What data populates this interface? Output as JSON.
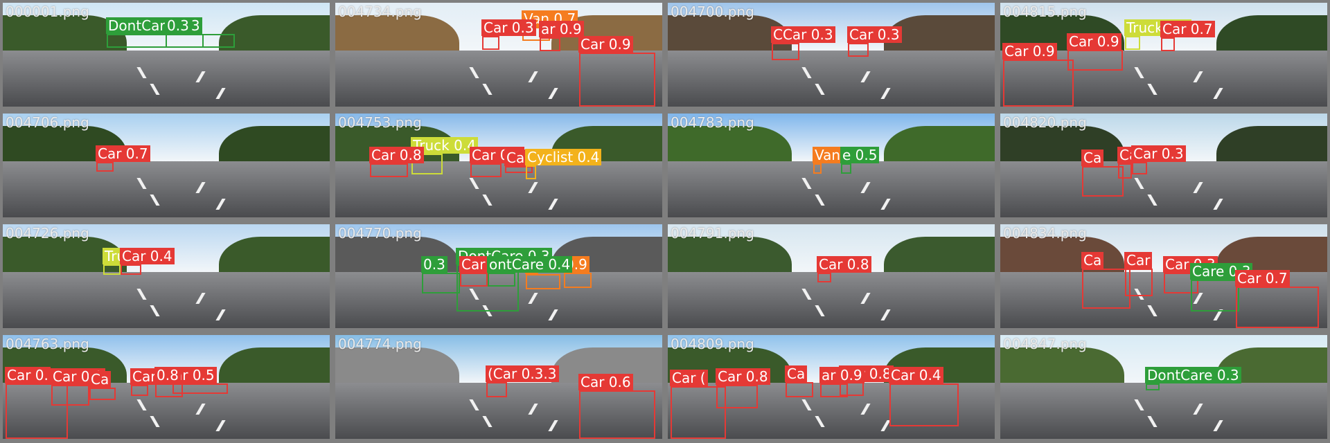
{
  "class_colors": {
    "Car": "#e53935",
    "Van": "#f57c1f",
    "Truck": "#cddc39",
    "Cyclist": "#f3b21b",
    "DontCare": "#2e9e3a"
  },
  "tiles": [
    {
      "filename": "000001.png",
      "detections": [
        {
          "label": "DontCare 0.3",
          "cls": "DontCare"
        },
        {
          "label": "0.3",
          "cls": "DontCare"
        }
      ]
    },
    {
      "filename": "004734.png",
      "detections": [
        {
          "label": "Van 0.7",
          "cls": "Van"
        },
        {
          "label": "Car 0.3",
          "cls": "Car"
        },
        {
          "label": "ar 0.9",
          "cls": "Car"
        },
        {
          "label": "Car 0.9",
          "cls": "Car"
        }
      ]
    },
    {
      "filename": "004700.png",
      "detections": [
        {
          "label": "CCar 0.3",
          "cls": "Car"
        },
        {
          "label": "Car 0.3",
          "cls": "Car"
        }
      ]
    },
    {
      "filename": "004815.png",
      "detections": [
        {
          "label": "Car 0.9",
          "cls": "Car"
        },
        {
          "label": "Truck 0.8",
          "cls": "Truck"
        },
        {
          "label": "Car 0.7",
          "cls": "Car"
        },
        {
          "label": "Car 0.9",
          "cls": "Car"
        }
      ]
    },
    {
      "filename": "004706.png",
      "detections": [
        {
          "label": "Car 0.7",
          "cls": "Car"
        }
      ]
    },
    {
      "filename": "004753.png",
      "detections": [
        {
          "label": "Truck 0.4",
          "cls": "Truck"
        },
        {
          "label": "Car 0.8",
          "cls": "Car"
        },
        {
          "label": "Car 0.4",
          "cls": "Car"
        },
        {
          "label": "Car",
          "cls": "Car"
        },
        {
          "label": "Cyclist 0.4",
          "cls": "Cyclist"
        }
      ]
    },
    {
      "filename": "004783.png",
      "detections": [
        {
          "label": "Van 0.3",
          "cls": "Van"
        },
        {
          "label": "e 0.5",
          "cls": "DontCare"
        }
      ]
    },
    {
      "filename": "004820.png",
      "detections": [
        {
          "label": "Ca",
          "cls": "Car"
        },
        {
          "label": "Ca",
          "cls": "Car"
        },
        {
          "label": "Car 0.3",
          "cls": "Car"
        }
      ]
    },
    {
      "filename": "004726.png",
      "detections": [
        {
          "label": "Truck 0.3",
          "cls": "Truck"
        },
        {
          "label": "Car 0.4",
          "cls": "Car"
        }
      ]
    },
    {
      "filename": "004770.png",
      "detections": [
        {
          "label": "DontCare 0.3",
          "cls": "DontCare"
        },
        {
          "label": "0.3",
          "cls": "DontCare"
        },
        {
          "label": "6",
          "cls": "Van"
        },
        {
          "label": "0.9",
          "cls": "Van"
        },
        {
          "label": "Car 0.4",
          "cls": "Car"
        },
        {
          "label": "ontCare 0.4",
          "cls": "DontCare"
        }
      ]
    },
    {
      "filename": "004791.png",
      "detections": [
        {
          "label": "Car 0.8",
          "cls": "Car"
        }
      ]
    },
    {
      "filename": "004834.png",
      "detections": [
        {
          "label": "Ca",
          "cls": "Car"
        },
        {
          "label": "Car",
          "cls": "Car"
        },
        {
          "label": "Car 0.3",
          "cls": "Car"
        },
        {
          "label": "Care 0.3",
          "cls": "DontCare"
        },
        {
          "label": "Car 0.7",
          "cls": "Car"
        }
      ]
    },
    {
      "filename": "004763.png",
      "detections": [
        {
          "label": "Car 0.",
          "cls": "Car"
        },
        {
          "label": "Car 0.9",
          "cls": "Car"
        },
        {
          "label": "Ca",
          "cls": "Car"
        },
        {
          "label": "Car 0.4",
          "cls": "Car"
        },
        {
          "label": "ar 0.5",
          "cls": "Car"
        },
        {
          "label": "0.8",
          "cls": "Car"
        }
      ]
    },
    {
      "filename": "004774.png",
      "detections": [
        {
          "label": "(Car 0.3.3",
          "cls": "Car"
        },
        {
          "label": "Car 0.6",
          "cls": "Car"
        }
      ]
    },
    {
      "filename": "004809.png",
      "detections": [
        {
          "label": "Car (",
          "cls": "Car"
        },
        {
          "label": "Car 0.8",
          "cls": "Car"
        },
        {
          "label": "Ca",
          "cls": "Car"
        },
        {
          "label": "Car 0.8",
          "cls": "Car"
        },
        {
          "label": "Car 0.4",
          "cls": "Car"
        },
        {
          "label": "ar 0.9",
          "cls": "Car"
        }
      ]
    },
    {
      "filename": "004847.png",
      "detections": [
        {
          "label": "DontCare 0.3",
          "cls": "DontCare"
        }
      ]
    }
  ]
}
